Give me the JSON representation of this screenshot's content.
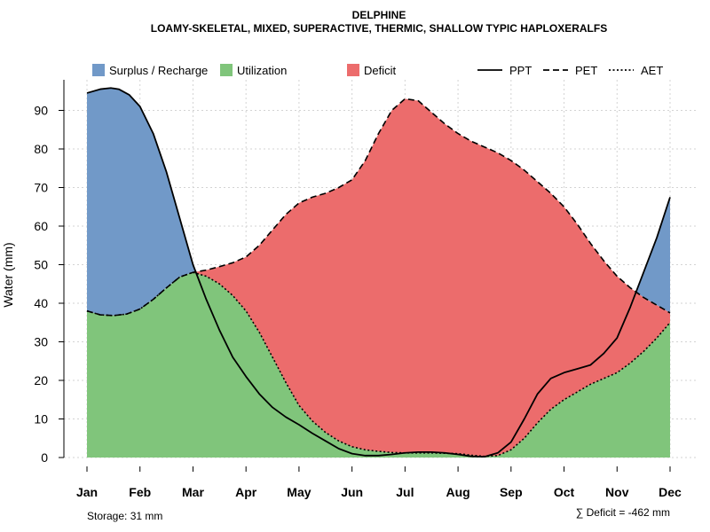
{
  "chart_data": {
    "type": "area",
    "title": "DELPHINE",
    "subtitle": "LOAMY-SKELETAL, MIXED, SUPERACTIVE, THERMIC, SHALLOW TYPIC HAPLOXERALFS",
    "ylabel": "Water (mm)",
    "xlabel": "",
    "ylim": [
      0,
      98
    ],
    "yticks": [
      0,
      10,
      20,
      30,
      40,
      50,
      60,
      70,
      80,
      90
    ],
    "grid": true,
    "categories": [
      "Jan",
      "Feb",
      "Mar",
      "Apr",
      "May",
      "Jun",
      "Jul",
      "Aug",
      "Sep",
      "Oct",
      "Nov",
      "Dec"
    ],
    "series": [
      {
        "name": "PPT",
        "line": "solid",
        "x": [
          1,
          1.25,
          1.45,
          1.6,
          1.8,
          2.0,
          2.25,
          2.5,
          2.75,
          3.0,
          3.25,
          3.5,
          3.75,
          4.0,
          4.25,
          4.5,
          4.75,
          5.0,
          5.25,
          5.5,
          5.75,
          6.0,
          6.25,
          6.5,
          6.75,
          7.0,
          7.25,
          7.5,
          7.75,
          8.0,
          8.25,
          8.5,
          8.75,
          9.0,
          9.25,
          9.5,
          9.75,
          10.0,
          10.25,
          10.5,
          10.75,
          11.0,
          11.25,
          11.5,
          11.75,
          12.0
        ],
        "values": [
          94.5,
          95.5,
          95.8,
          95.5,
          94,
          91,
          84,
          74,
          62,
          50,
          41,
          33,
          26,
          21,
          16.5,
          13,
          10.5,
          8.5,
          6.3,
          4.3,
          2.3,
          1,
          0.5,
          0.5,
          0.8,
          1.2,
          1.4,
          1.4,
          1.2,
          0.8,
          0.3,
          0.2,
          1.2,
          4,
          10,
          16.5,
          20.5,
          22,
          23,
          24,
          27,
          31,
          39,
          48,
          57,
          67.5
        ]
      },
      {
        "name": "PET",
        "line": "dashed",
        "x": [
          1,
          1.25,
          1.5,
          1.75,
          2.0,
          2.25,
          2.5,
          2.75,
          3.0,
          3.25,
          3.5,
          3.75,
          4.0,
          4.25,
          4.5,
          4.75,
          5.0,
          5.25,
          5.5,
          5.75,
          6.0,
          6.25,
          6.5,
          6.75,
          7.0,
          7.25,
          7.5,
          7.75,
          8.0,
          8.25,
          8.5,
          8.75,
          9.0,
          9.25,
          9.5,
          9.75,
          10.0,
          10.25,
          10.5,
          10.75,
          11.0,
          11.25,
          11.5,
          11.75,
          12.0
        ],
        "values": [
          38,
          37,
          36.8,
          37.2,
          38.5,
          41,
          44,
          46.8,
          48,
          48.6,
          49.5,
          50.5,
          52,
          55,
          59,
          63,
          66,
          67.5,
          68.5,
          70,
          72,
          77,
          84,
          90,
          93,
          92.5,
          89.5,
          86.5,
          84,
          82,
          80.5,
          79,
          77,
          74.5,
          71.5,
          68.5,
          65,
          60.5,
          55.5,
          51,
          47,
          44,
          41.5,
          39.5,
          37.5
        ]
      },
      {
        "name": "AET",
        "line": "dotted",
        "x": [
          1,
          1.25,
          1.5,
          1.75,
          2.0,
          2.25,
          2.5,
          2.75,
          3.0,
          3.25,
          3.5,
          3.75,
          4.0,
          4.25,
          4.5,
          4.75,
          5.0,
          5.25,
          5.5,
          5.75,
          6.0,
          6.25,
          6.5,
          6.75,
          7.0,
          7.25,
          7.5,
          7.75,
          8.0,
          8.25,
          8.5,
          8.75,
          9.0,
          9.25,
          9.5,
          9.75,
          10.0,
          10.25,
          10.5,
          10.75,
          11.0,
          11.25,
          11.5,
          11.75,
          12.0
        ],
        "values": [
          38,
          37,
          36.8,
          37.2,
          38.5,
          41,
          44,
          46.8,
          48,
          47,
          45,
          42,
          38,
          32.5,
          26,
          19.5,
          13.5,
          9.5,
          6.5,
          4.3,
          2.8,
          2,
          1.6,
          1.3,
          1.2,
          1.2,
          1.2,
          1.1,
          1.0,
          0.6,
          0.3,
          0.5,
          2,
          5,
          9,
          12.5,
          15,
          17,
          19,
          20.5,
          22,
          24.5,
          27.5,
          31,
          35
        ]
      }
    ],
    "legend": [
      {
        "label": "Surplus / Recharge",
        "kind": "fill",
        "color": "#7199c8"
      },
      {
        "label": "Utilization",
        "kind": "fill",
        "color": "#80c57b"
      },
      {
        "label": "Deficit",
        "kind": "fill",
        "color": "#ec6c6c"
      },
      {
        "label": "PPT",
        "kind": "line",
        "dash": "solid"
      },
      {
        "label": "PET",
        "kind": "line",
        "dash": "dashed"
      },
      {
        "label": "AET",
        "kind": "line",
        "dash": "dotted"
      }
    ],
    "legend_position": "top",
    "footnote_left": "Storage: 31 mm",
    "footnote_right": "∑ Deficit = -462 mm",
    "colors": {
      "surplus": "#7199c8",
      "utilization": "#80c57b",
      "deficit": "#ec6c6c"
    }
  }
}
